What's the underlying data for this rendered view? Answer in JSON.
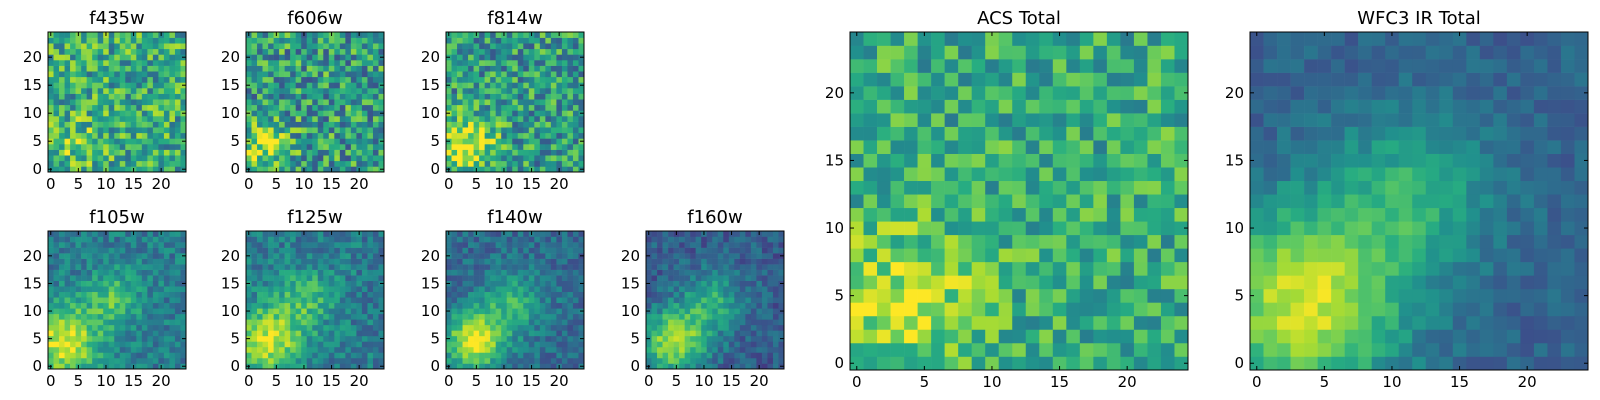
{
  "chart_data": [
    {
      "type": "heatmap",
      "title": "f435w",
      "grid_size": 25,
      "xticks": [
        0,
        5,
        10,
        15,
        20
      ],
      "yticks": [
        0,
        5,
        10,
        15,
        20
      ],
      "xlim": [
        0,
        25
      ],
      "ylim": [
        0,
        25
      ],
      "colormap": "viridis",
      "field": {
        "seed": 11,
        "blobs": [
          [
            5,
            5,
            3.2,
            0.15
          ]
        ],
        "base": 0.62,
        "noise": 0.55
      }
    },
    {
      "type": "heatmap",
      "title": "f606w",
      "grid_size": 25,
      "xticks": [
        0,
        5,
        10,
        15,
        20
      ],
      "yticks": [
        0,
        5,
        10,
        15,
        20
      ],
      "xlim": [
        0,
        25
      ],
      "ylim": [
        0,
        25
      ],
      "colormap": "viridis",
      "field": {
        "seed": 23,
        "blobs": [
          [
            3,
            5,
            3.2,
            0.35
          ]
        ],
        "base": 0.55,
        "noise": 0.6
      }
    },
    {
      "type": "heatmap",
      "title": "f814w",
      "grid_size": 25,
      "xticks": [
        0,
        5,
        10,
        15,
        20
      ],
      "yticks": [
        0,
        5,
        10,
        15,
        20
      ],
      "xlim": [
        0,
        25
      ],
      "ylim": [
        0,
        25
      ],
      "colormap": "viridis",
      "field": {
        "seed": 37,
        "blobs": [
          [
            4,
            5,
            3.4,
            0.45
          ]
        ],
        "base": 0.55,
        "noise": 0.55
      }
    },
    {
      "type": "heatmap",
      "title": "f105w",
      "grid_size": 25,
      "xticks": [
        0,
        5,
        10,
        15,
        20
      ],
      "yticks": [
        0,
        5,
        10,
        15,
        20
      ],
      "xlim": [
        0,
        25
      ],
      "ylim": [
        0,
        25
      ],
      "colormap": "viridis",
      "field": {
        "seed": 41,
        "blobs": [
          [
            3,
            5,
            4.5,
            0.55
          ],
          [
            12,
            13,
            3.5,
            0.3
          ]
        ],
        "base": 0.42,
        "noise": 0.28
      }
    },
    {
      "type": "heatmap",
      "title": "f125w",
      "grid_size": 25,
      "xticks": [
        0,
        5,
        10,
        15,
        20
      ],
      "yticks": [
        0,
        5,
        10,
        15,
        20
      ],
      "xlim": [
        0,
        25
      ],
      "ylim": [
        0,
        25
      ],
      "colormap": "viridis",
      "field": {
        "seed": 53,
        "blobs": [
          [
            4,
            5,
            4.5,
            0.5
          ],
          [
            11,
            13,
            3.8,
            0.25
          ]
        ],
        "base": 0.42,
        "noise": 0.3
      }
    },
    {
      "type": "heatmap",
      "title": "f140w",
      "grid_size": 25,
      "xticks": [
        0,
        5,
        10,
        15,
        20
      ],
      "yticks": [
        0,
        5,
        10,
        15,
        20
      ],
      "xlim": [
        0,
        25
      ],
      "ylim": [
        0,
        25
      ],
      "colormap": "viridis",
      "field": {
        "seed": 67,
        "blobs": [
          [
            5,
            5,
            3.8,
            0.6
          ],
          [
            12,
            12,
            4.0,
            0.3
          ]
        ],
        "base": 0.35,
        "noise": 0.25
      }
    },
    {
      "type": "heatmap",
      "title": "f160w",
      "grid_size": 25,
      "xticks": [
        0,
        5,
        10,
        15,
        20
      ],
      "yticks": [
        0,
        5,
        10,
        15,
        20
      ],
      "xlim": [
        0,
        25
      ],
      "ylim": [
        0,
        25
      ],
      "colormap": "viridis",
      "field": {
        "seed": 79,
        "blobs": [
          [
            5,
            5,
            4.0,
            0.6
          ],
          [
            12,
            12,
            4.0,
            0.32
          ]
        ],
        "base": 0.3,
        "noise": 0.25
      }
    },
    {
      "type": "heatmap",
      "title": "ACS Total",
      "grid_size": 25,
      "xticks": [
        0,
        5,
        10,
        15,
        20
      ],
      "yticks": [
        0,
        5,
        10,
        15,
        20
      ],
      "xlim": [
        0,
        25
      ],
      "ylim": [
        0,
        25
      ],
      "colormap": "viridis",
      "field": {
        "seed": 97,
        "blobs": [
          [
            4,
            5,
            4.0,
            0.3
          ]
        ],
        "base": 0.62,
        "noise": 0.42
      }
    },
    {
      "type": "heatmap",
      "title": "WFC3 IR Total",
      "grid_size": 25,
      "xticks": [
        0,
        5,
        10,
        15,
        20
      ],
      "yticks": [
        0,
        5,
        10,
        15,
        20
      ],
      "xlim": [
        0,
        25
      ],
      "ylim": [
        0,
        25
      ],
      "colormap": "viridis",
      "field": {
        "seed": 113,
        "blobs": [
          [
            4,
            5,
            5.0,
            0.62
          ],
          [
            12,
            13,
            4.2,
            0.3
          ]
        ],
        "base": 0.32,
        "noise": 0.16
      }
    }
  ]
}
